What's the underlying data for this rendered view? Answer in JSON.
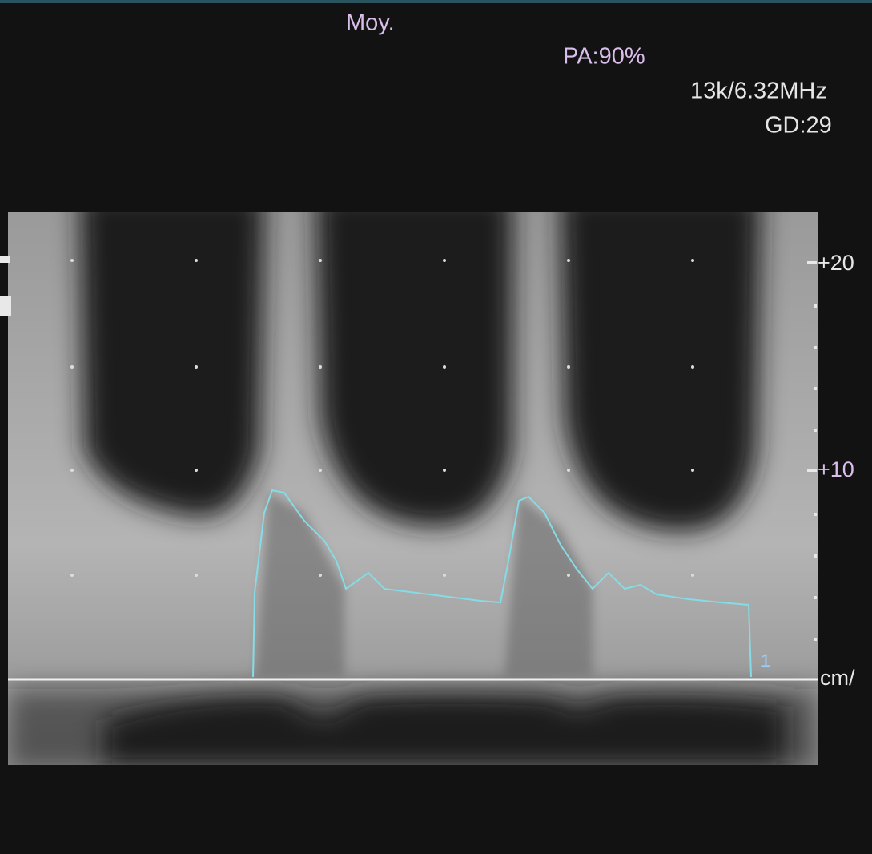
{
  "header": {
    "mode": "Moy.",
    "power": "PA:90%",
    "frequency": "13k/6.32MHz",
    "gain": "GD:29"
  },
  "scale": {
    "labels": [
      "+20",
      "+10",
      "cm/"
    ]
  },
  "trace": {
    "label": "1"
  }
}
